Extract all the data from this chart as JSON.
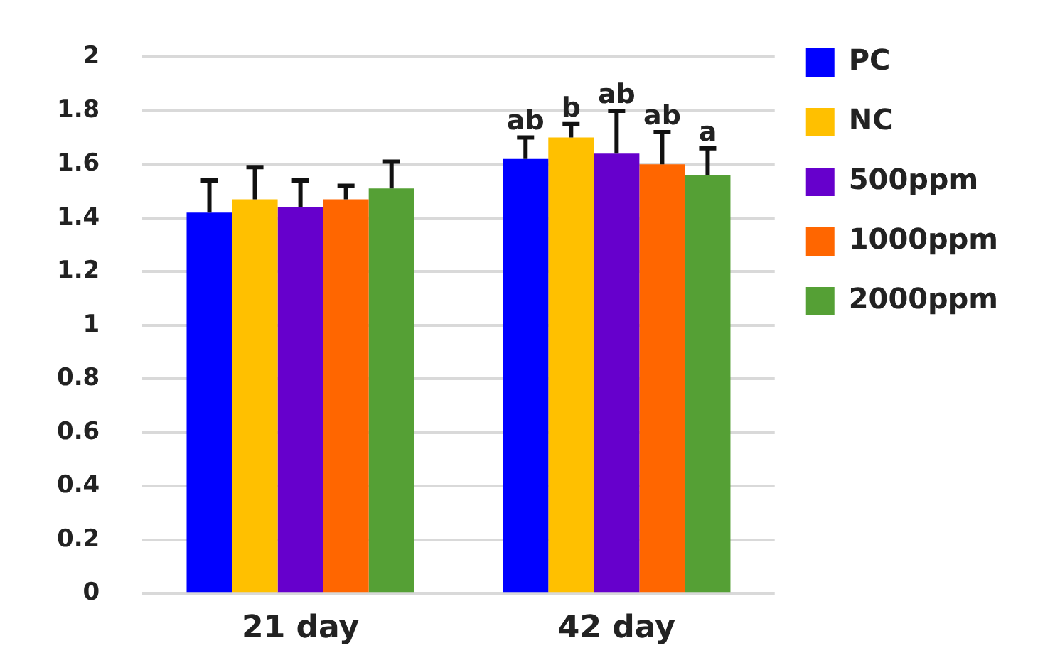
{
  "chart_data": {
    "type": "bar",
    "categories": [
      "21 day",
      "42 day"
    ],
    "series": [
      {
        "name": "PC",
        "color": "#0000ff",
        "values": [
          1.42,
          1.62
        ],
        "errors": [
          0.12,
          0.08
        ],
        "value_labels": [
          null,
          "ab"
        ]
      },
      {
        "name": "NC",
        "color": "#ffc000",
        "values": [
          1.47,
          1.7
        ],
        "errors": [
          0.12,
          0.05
        ],
        "value_labels": [
          null,
          "b"
        ]
      },
      {
        "name": "500ppm",
        "color": "#6600cc",
        "values": [
          1.44,
          1.64
        ],
        "errors": [
          0.1,
          0.16
        ],
        "value_labels": [
          null,
          "ab"
        ]
      },
      {
        "name": "1000ppm",
        "color": "#ff6600",
        "values": [
          1.47,
          1.6
        ],
        "errors": [
          0.05,
          0.12
        ],
        "value_labels": [
          null,
          "ab"
        ]
      },
      {
        "name": "2000ppm",
        "color": "#55a035",
        "values": [
          1.51,
          1.56
        ],
        "errors": [
          0.1,
          0.1
        ],
        "value_labels": [
          null,
          "a"
        ]
      }
    ],
    "ylim": [
      0,
      2
    ],
    "yticks": [
      0,
      0.2,
      0.4,
      0.6,
      0.8,
      1,
      1.2,
      1.4,
      1.6,
      1.8,
      2
    ],
    "grid": "y",
    "legend": "right"
  }
}
